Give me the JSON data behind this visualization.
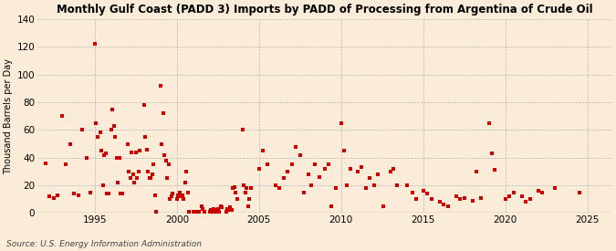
{
  "title": "Monthly Gulf Coast (PADD 3) Imports by PADD of Processing from Argentina of Crude Oil",
  "ylabel": "Thousand Barrels per Day",
  "source": "Source: U.S. Energy Information Administration",
  "background_color": "#faecd8",
  "marker_color": "#cc0000",
  "xlim": [
    1991.5,
    2026.5
  ],
  "ylim": [
    0,
    140
  ],
  "yticks": [
    0,
    20,
    40,
    60,
    80,
    100,
    120,
    140
  ],
  "xticks": [
    1995,
    2000,
    2005,
    2010,
    2015,
    2020,
    2025
  ],
  "data_points": [
    [
      1992.0,
      36
    ],
    [
      1992.25,
      12
    ],
    [
      1992.5,
      11
    ],
    [
      1992.75,
      13
    ],
    [
      1993.0,
      70
    ],
    [
      1993.25,
      35
    ],
    [
      1993.5,
      50
    ],
    [
      1993.75,
      14
    ],
    [
      1994.0,
      13
    ],
    [
      1994.25,
      60
    ],
    [
      1994.5,
      40
    ],
    [
      1994.75,
      15
    ],
    [
      1995.0,
      122
    ],
    [
      1995.08,
      65
    ],
    [
      1995.17,
      55
    ],
    [
      1995.33,
      58
    ],
    [
      1995.42,
      45
    ],
    [
      1995.5,
      20
    ],
    [
      1995.58,
      42
    ],
    [
      1995.67,
      43
    ],
    [
      1995.75,
      14
    ],
    [
      1995.83,
      14
    ],
    [
      1996.0,
      60
    ],
    [
      1996.08,
      75
    ],
    [
      1996.17,
      63
    ],
    [
      1996.25,
      55
    ],
    [
      1996.33,
      40
    ],
    [
      1996.42,
      22
    ],
    [
      1996.5,
      40
    ],
    [
      1996.58,
      14
    ],
    [
      1996.67,
      14
    ],
    [
      1997.0,
      50
    ],
    [
      1997.08,
      30
    ],
    [
      1997.17,
      25
    ],
    [
      1997.25,
      44
    ],
    [
      1997.33,
      28
    ],
    [
      1997.42,
      22
    ],
    [
      1997.5,
      44
    ],
    [
      1997.58,
      25
    ],
    [
      1997.67,
      30
    ],
    [
      1997.75,
      45
    ],
    [
      1998.0,
      78
    ],
    [
      1998.08,
      55
    ],
    [
      1998.17,
      46
    ],
    [
      1998.25,
      30
    ],
    [
      1998.33,
      25
    ],
    [
      1998.42,
      25
    ],
    [
      1998.5,
      28
    ],
    [
      1998.58,
      35
    ],
    [
      1998.67,
      13
    ],
    [
      1998.75,
      1
    ],
    [
      1999.0,
      92
    ],
    [
      1999.08,
      50
    ],
    [
      1999.17,
      72
    ],
    [
      1999.25,
      42
    ],
    [
      1999.33,
      38
    ],
    [
      1999.42,
      25
    ],
    [
      1999.5,
      35
    ],
    [
      1999.58,
      10
    ],
    [
      1999.67,
      12
    ],
    [
      1999.75,
      14
    ],
    [
      2000.0,
      10
    ],
    [
      2000.08,
      13
    ],
    [
      2000.17,
      15
    ],
    [
      2000.25,
      12
    ],
    [
      2000.33,
      13
    ],
    [
      2000.42,
      10
    ],
    [
      2000.5,
      22
    ],
    [
      2000.58,
      30
    ],
    [
      2000.67,
      15
    ],
    [
      2000.75,
      1
    ],
    [
      2001.0,
      1
    ],
    [
      2001.08,
      1
    ],
    [
      2001.17,
      1
    ],
    [
      2001.25,
      1
    ],
    [
      2001.33,
      1
    ],
    [
      2001.5,
      5
    ],
    [
      2001.58,
      3
    ],
    [
      2001.67,
      1
    ],
    [
      2002.0,
      1
    ],
    [
      2002.08,
      2
    ],
    [
      2002.17,
      1
    ],
    [
      2002.25,
      3
    ],
    [
      2002.33,
      1
    ],
    [
      2002.42,
      2
    ],
    [
      2002.5,
      3
    ],
    [
      2002.58,
      1
    ],
    [
      2002.67,
      5
    ],
    [
      2002.75,
      4
    ],
    [
      2003.0,
      1
    ],
    [
      2003.08,
      3
    ],
    [
      2003.17,
      2
    ],
    [
      2003.25,
      4
    ],
    [
      2003.33,
      2
    ],
    [
      2003.42,
      18
    ],
    [
      2003.5,
      19
    ],
    [
      2003.58,
      15
    ],
    [
      2003.67,
      10
    ],
    [
      2004.0,
      60
    ],
    [
      2004.08,
      20
    ],
    [
      2004.17,
      15
    ],
    [
      2004.25,
      18
    ],
    [
      2004.33,
      5
    ],
    [
      2004.42,
      10
    ],
    [
      2004.5,
      18
    ],
    [
      2005.0,
      32
    ],
    [
      2005.25,
      45
    ],
    [
      2005.5,
      35
    ],
    [
      2006.0,
      20
    ],
    [
      2006.25,
      18
    ],
    [
      2006.5,
      25
    ],
    [
      2006.75,
      30
    ],
    [
      2007.0,
      35
    ],
    [
      2007.25,
      48
    ],
    [
      2007.5,
      42
    ],
    [
      2007.75,
      15
    ],
    [
      2008.0,
      28
    ],
    [
      2008.17,
      20
    ],
    [
      2008.42,
      35
    ],
    [
      2008.67,
      26
    ],
    [
      2009.0,
      32
    ],
    [
      2009.25,
      35
    ],
    [
      2009.42,
      5
    ],
    [
      2009.67,
      18
    ],
    [
      2010.0,
      65
    ],
    [
      2010.17,
      45
    ],
    [
      2010.33,
      20
    ],
    [
      2010.58,
      32
    ],
    [
      2011.0,
      30
    ],
    [
      2011.25,
      33
    ],
    [
      2011.5,
      18
    ],
    [
      2011.75,
      25
    ],
    [
      2012.0,
      20
    ],
    [
      2012.25,
      28
    ],
    [
      2012.58,
      5
    ],
    [
      2013.0,
      30
    ],
    [
      2013.17,
      32
    ],
    [
      2013.42,
      20
    ],
    [
      2014.0,
      20
    ],
    [
      2014.33,
      15
    ],
    [
      2014.58,
      10
    ],
    [
      2015.0,
      16
    ],
    [
      2015.25,
      14
    ],
    [
      2015.5,
      10
    ],
    [
      2016.0,
      8
    ],
    [
      2016.25,
      6
    ],
    [
      2016.5,
      5
    ],
    [
      2017.0,
      12
    ],
    [
      2017.25,
      10
    ],
    [
      2017.5,
      11
    ],
    [
      2018.0,
      9
    ],
    [
      2018.25,
      30
    ],
    [
      2018.5,
      11
    ],
    [
      2019.0,
      65
    ],
    [
      2019.17,
      43
    ],
    [
      2019.33,
      31
    ],
    [
      2020.0,
      10
    ],
    [
      2020.25,
      12
    ],
    [
      2020.5,
      15
    ],
    [
      2021.0,
      12
    ],
    [
      2021.25,
      8
    ],
    [
      2021.5,
      10
    ],
    [
      2022.0,
      16
    ],
    [
      2022.25,
      15
    ],
    [
      2023.0,
      18
    ],
    [
      2024.5,
      15
    ]
  ]
}
